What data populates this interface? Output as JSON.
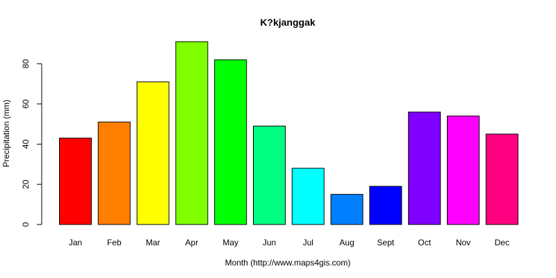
{
  "chart_data": {
    "type": "bar",
    "title": "K?kjanggak",
    "xlabel": "Month (http://www.maps4gis.com)",
    "ylabel": "Precipitation (mm)",
    "categories": [
      "Jan",
      "Feb",
      "Mar",
      "Apr",
      "May",
      "Jun",
      "Jul",
      "Aug",
      "Sept",
      "Oct",
      "Nov",
      "Dec"
    ],
    "values": [
      43,
      51,
      71,
      91,
      82,
      49,
      28,
      15,
      19,
      56,
      54,
      45
    ],
    "colors": [
      "#ff0000",
      "#ff8000",
      "#ffff00",
      "#80ff00",
      "#00ff00",
      "#00ff80",
      "#00ffff",
      "#0080ff",
      "#0000ff",
      "#8000ff",
      "#ff00ff",
      "#ff0080"
    ],
    "yticks": [
      0,
      20,
      40,
      60,
      80
    ],
    "ylim": [
      0,
      91
    ],
    "grid": false,
    "legend": "none"
  }
}
